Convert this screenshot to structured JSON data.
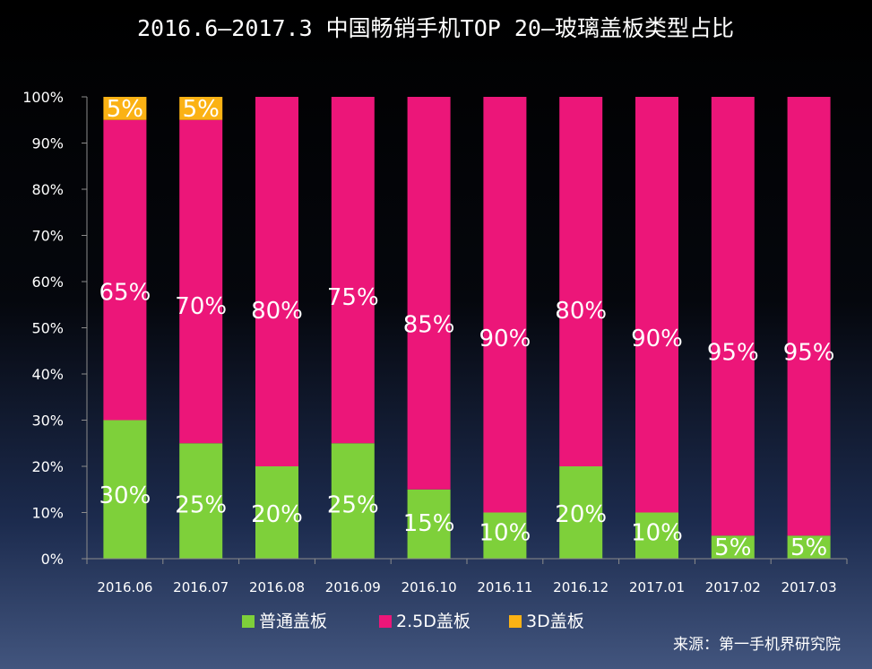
{
  "chart_data": {
    "type": "bar",
    "stacked": true,
    "title": "2016.6—2017.3 中国畅销手机TOP 20—玻璃盖板类型占比",
    "categories": [
      "2016.06",
      "2016.07",
      "2016.08",
      "2016.09",
      "2016.10",
      "2016.11",
      "2016.12",
      "2017.01",
      "2017.02",
      "2017.03"
    ],
    "series": [
      {
        "name": "普通盖板",
        "color": "#7ed03a",
        "values": [
          30,
          25,
          20,
          25,
          15,
          10,
          20,
          10,
          5,
          5
        ],
        "labels": [
          "30%",
          "25%",
          "20%",
          "25%",
          "15%",
          "10%",
          "20%",
          "10%",
          "5%",
          "5%"
        ]
      },
      {
        "name": "2.5D盖板",
        "color": "#ec1679",
        "values": [
          65,
          70,
          80,
          75,
          85,
          90,
          80,
          90,
          95,
          95
        ],
        "labels": [
          "65%",
          "70%",
          "80%",
          "75%",
          "85%",
          "90%",
          "80%",
          "90%",
          "95%",
          "95%"
        ]
      },
      {
        "name": "3D盖板",
        "color": "#fbb214",
        "values": [
          5,
          5,
          0,
          0,
          0,
          0,
          0,
          0,
          0,
          0
        ],
        "labels": [
          "5%",
          "5%",
          "",
          "",
          "",
          "",
          "",
          "",
          "",
          ""
        ]
      }
    ],
    "yticks": [
      "0%",
      "10%",
      "20%",
      "30%",
      "40%",
      "50%",
      "60%",
      "70%",
      "80%",
      "90%",
      "100%"
    ],
    "ylim": [
      0,
      100
    ],
    "legend": "bottom",
    "source": "来源：第一手机界研究院"
  },
  "colors": {
    "background": "#000000",
    "text": "#ffffff",
    "axis": "#8c8c8c"
  }
}
